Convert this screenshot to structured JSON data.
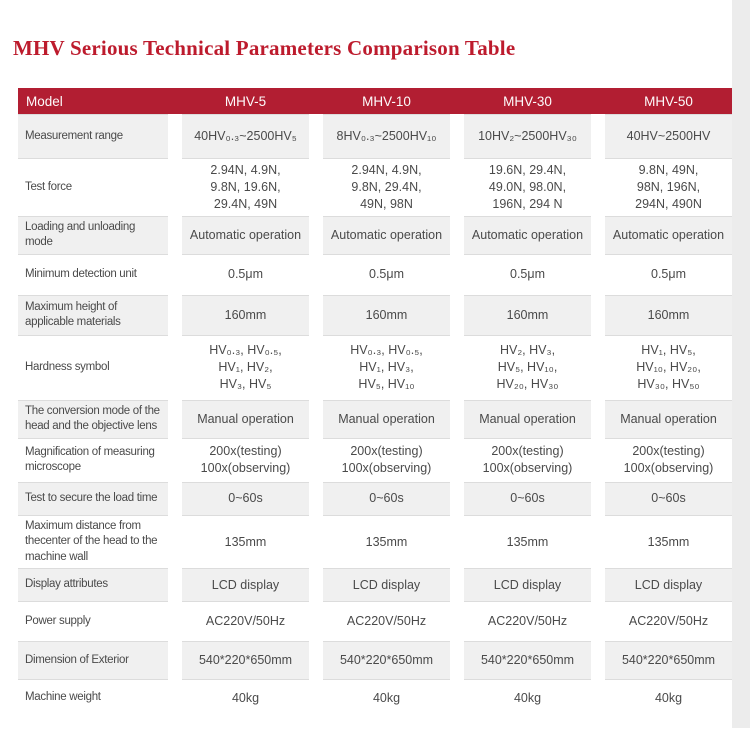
{
  "page": {
    "title": "MHV Serious Technical Parameters Comparison Table"
  },
  "colors": {
    "title_red": "#bd1b2d",
    "header_bg": "#b21e32",
    "header_text": "#fdfbfb",
    "row_gray": "#f0f0f0",
    "row_white": "#ffffff",
    "body_text": "#4a4a4a",
    "hairline": "#dcdcdc",
    "edge_band": "#ececec"
  },
  "table": {
    "header": {
      "model_label": "Model",
      "columns": [
        "MHV-5",
        "MHV-10",
        "MHV-30",
        "MHV-50"
      ]
    },
    "rows": [
      {
        "label": "Measurement range",
        "values": [
          "40HV₀.₃~2500HV₅",
          "8HV₀.₃~2500HV₁₀",
          "10HV₂~2500HV₃₀",
          "40HV~2500HV"
        ]
      },
      {
        "label": "Test force",
        "values": [
          "2.94N, 4.9N,\n9.8N, 19.6N,\n29.4N, 49N",
          "2.94N, 4.9N,\n9.8N, 29.4N,\n49N, 98N",
          "19.6N, 29.4N,\n49.0N, 98.0N,\n196N, 294 N",
          "9.8N, 49N,\n98N, 196N,\n294N, 490N"
        ]
      },
      {
        "label": "Loading and unloading mode",
        "values": [
          "Automatic operation",
          "Automatic operation",
          "Automatic operation",
          "Automatic operation"
        ]
      },
      {
        "label": "Minimum detection unit",
        "values": [
          "0.5μm",
          "0.5μm",
          "0.5μm",
          "0.5μm"
        ]
      },
      {
        "label": "Maximum height of applicable materials",
        "values": [
          "160mm",
          "160mm",
          "160mm",
          "160mm"
        ]
      },
      {
        "label": "Hardness symbol",
        "values": [
          "HV₀.₃, HV₀.₅,\nHV₁, HV₂,\nHV₃, HV₅",
          "HV₀.₃, HV₀.₅,\nHV₁, HV₃,\nHV₅, HV₁₀",
          "HV₂, HV₃,\nHV₅, HV₁₀,\nHV₂₀, HV₃₀",
          "HV₁, HV₅,\nHV₁₀, HV₂₀,\nHV₃₀, HV₅₀"
        ]
      },
      {
        "label": "The conversion mode of the head and the objective lens",
        "values": [
          "Manual operation",
          "Manual operation",
          "Manual operation",
          "Manual operation"
        ]
      },
      {
        "label": "Magnification of measuring microscope",
        "values": [
          "200x(testing)\n100x(observing)",
          "200x(testing)\n100x(observing)",
          "200x(testing)\n100x(observing)",
          "200x(testing)\n100x(observing)"
        ]
      },
      {
        "label": "Test to secure the load time",
        "values": [
          "0~60s",
          "0~60s",
          "0~60s",
          "0~60s"
        ]
      },
      {
        "label": "Maximum distance from thecenter of the head to the machine wall",
        "values": [
          "135mm",
          "135mm",
          "135mm",
          "135mm"
        ]
      },
      {
        "label": "Display attributes",
        "values": [
          "LCD display",
          "LCD display",
          "LCD display",
          "LCD display"
        ]
      },
      {
        "label": "Power supply",
        "values": [
          "AC220V/50Hz",
          "AC220V/50Hz",
          "AC220V/50Hz",
          "AC220V/50Hz"
        ]
      },
      {
        "label": "Dimension of Exterior",
        "values": [
          "540*220*650mm",
          "540*220*650mm",
          "540*220*650mm",
          "540*220*650mm"
        ]
      },
      {
        "label": "Machine weight",
        "values": [
          "40kg",
          "40kg",
          "40kg",
          "40kg"
        ]
      }
    ]
  }
}
